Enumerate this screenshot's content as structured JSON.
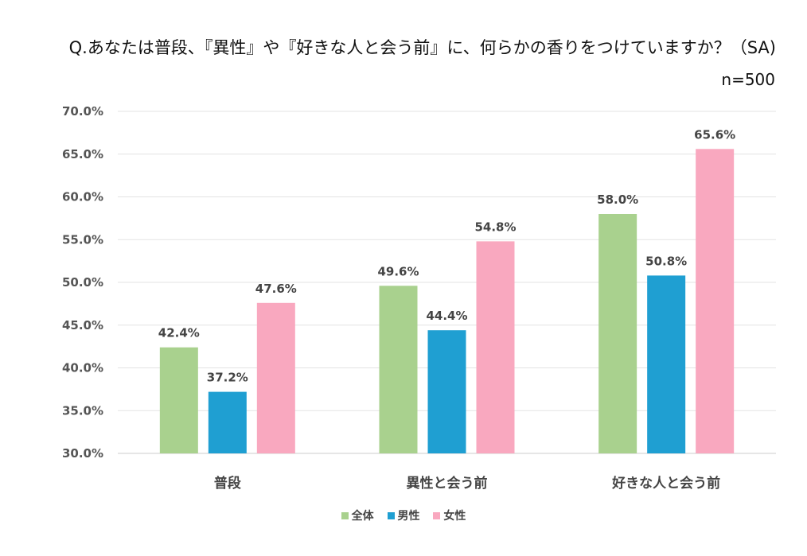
{
  "chart_data": {
    "type": "bar",
    "title": "Q.あなたは普段、『異性』や『好きな人と会う前』に、何らかの香りをつけていますか？（SA)",
    "sample_size": "n=500",
    "categories": [
      "普段",
      "異性と会う前",
      "好きな人と会う前"
    ],
    "series": [
      {
        "name": "全体",
        "color": "#a9d18e",
        "values": [
          42.4,
          49.6,
          58.0
        ]
      },
      {
        "name": "男性",
        "color": "#1f9fd2",
        "values": [
          37.2,
          44.4,
          50.8
        ]
      },
      {
        "name": "女性",
        "color": "#f9a8bf",
        "values": [
          47.6,
          54.8,
          65.6
        ]
      }
    ],
    "ylim": [
      30,
      70
    ],
    "yticks": [
      "70.0%",
      "65.0%",
      "60.0%",
      "55.0%",
      "50.0%",
      "45.0%",
      "40.0%",
      "35.0%",
      "30.0%"
    ],
    "ytick_values": [
      70,
      65,
      60,
      55,
      50,
      45,
      40,
      35,
      30
    ],
    "data_labels": [
      [
        "42.4%",
        "49.6%",
        "58.0%"
      ],
      [
        "37.2%",
        "44.4%",
        "50.8%"
      ],
      [
        "47.6%",
        "54.8%",
        "65.6%"
      ]
    ],
    "grid": true,
    "legend_position": "bottom"
  }
}
